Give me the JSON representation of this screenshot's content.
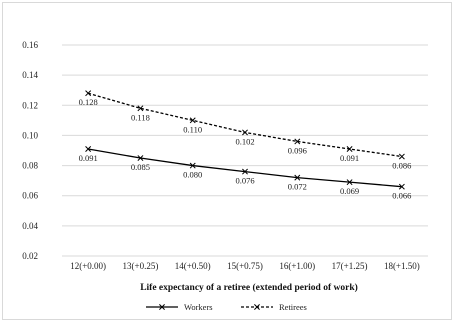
{
  "chart_data": {
    "type": "line",
    "title": "",
    "xlabel": "Life expectancy of a retiree (extended period of work)",
    "ylabel": "",
    "categories": [
      "12(+0.00)",
      "13(+0.25)",
      "14(+0.50)",
      "15(+0.75)",
      "16(+1.00)",
      "17(+1.25)",
      "18(+1.50)"
    ],
    "ylim": [
      0.02,
      0.16
    ],
    "yticks": [
      0.02,
      0.04,
      0.06,
      0.08,
      0.1,
      0.12,
      0.14,
      0.16
    ],
    "ytick_labels": [
      "0.02",
      "0.04",
      "0.06",
      "0.08",
      "0.10",
      "0.12",
      "0.14",
      "0.16"
    ],
    "grid": true,
    "legend_position": "bottom",
    "series": [
      {
        "name": "Workers",
        "style": "solid",
        "marker": "x",
        "color": "#000000",
        "values": [
          0.091,
          0.085,
          0.08,
          0.076,
          0.072,
          0.069,
          0.066
        ],
        "labels": [
          "0.091",
          "0.085",
          "0.080",
          "0.076",
          "0.072",
          "0.069",
          "0.066"
        ]
      },
      {
        "name": "Retirees",
        "style": "dashed",
        "marker": "x",
        "color": "#000000",
        "values": [
          0.128,
          0.118,
          0.11,
          0.102,
          0.096,
          0.091,
          0.086
        ],
        "labels": [
          "0.128",
          "0.118",
          "0.110",
          "0.102",
          "0.096",
          "0.091",
          "0.086"
        ]
      }
    ]
  }
}
